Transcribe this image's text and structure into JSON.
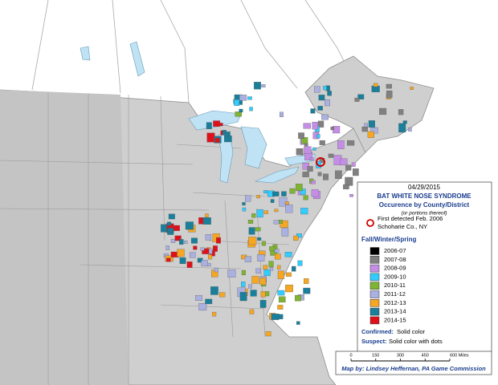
{
  "legend": {
    "date": "04/29/2015",
    "title": "BAT WHITE NOSE SYNDROME",
    "subtitle": "Occurence by County/District",
    "note": "(or portions thereof)",
    "first_detected": [
      "First detected Feb. 2006",
      "Schoharie Co., NY"
    ],
    "section": "Fall/Winter/Spring",
    "items": [
      {
        "label": "2006-07",
        "color": "#000000"
      },
      {
        "label": "2007-08",
        "color": "#808080"
      },
      {
        "label": "2008-09",
        "color": "#c58ee6"
      },
      {
        "label": "2009-10",
        "color": "#33ccff"
      },
      {
        "label": "2010-11",
        "color": "#7fb332"
      },
      {
        "label": "2011-12",
        "color": "#aab0e0"
      },
      {
        "label": "2012-13",
        "color": "#f5a623"
      },
      {
        "label": "2013-14",
        "color": "#1a7f9a"
      },
      {
        "label": "2014-15",
        "color": "#e0101a"
      }
    ],
    "confirmed": {
      "label": "Confirmed:",
      "text": "Solid color"
    },
    "suspect": {
      "label": "Suspect:",
      "text": "Solid color with dots"
    }
  },
  "scale": {
    "ticks": [
      0,
      150,
      300,
      450,
      {
        "value": 600,
        "label": "600 Miles"
      }
    ],
    "credit": "Map by: Lindsey Heffernan, PA Game Commission"
  }
}
